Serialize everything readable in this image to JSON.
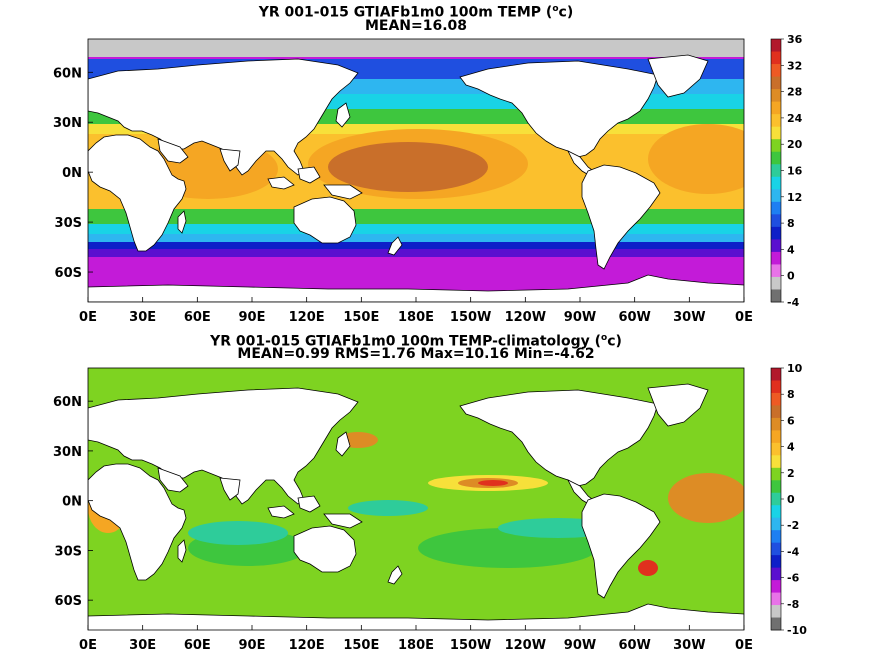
{
  "panel_top": {
    "title_line1_pre": "YR 001-015 GTIAFb1m0 100m TEMP (",
    "title_sup": "o",
    "title_line1_post": "c)",
    "title_line2": "MEAN=16.08",
    "lat_labels": [
      "60N",
      "30N",
      "0N",
      "30S",
      "60S"
    ],
    "lon_labels": [
      "0E",
      "30E",
      "60E",
      "90E",
      "120E",
      "150E",
      "180E",
      "150W",
      "120W",
      "90W",
      "60W",
      "30W",
      "0E"
    ],
    "colorbar_labels": [
      "36",
      "32",
      "28",
      "24",
      "20",
      "16",
      "12",
      "8",
      "4",
      "0",
      "-4"
    ],
    "colorbar_colors": [
      "#b2182b",
      "#e0301e",
      "#ee5a24",
      "#c96f2a",
      "#dd8c25",
      "#f5a623",
      "#fbc02d",
      "#f7e03a",
      "#7ed321",
      "#3ec63e",
      "#2ecc9a",
      "#19d3e6",
      "#2eb6f0",
      "#1e7ff2",
      "#1f4fe0",
      "#0e1fc8",
      "#5a0fcf",
      "#c31bd8",
      "#e873e8",
      "#c8c8c8",
      "#707070"
    ]
  },
  "panel_bottom": {
    "title_line1_pre": "YR 001-015 GTIAFb1m0 100m TEMP-climatology (",
    "title_sup": "o",
    "title_line1_post": "c)",
    "title_line2": "MEAN=0.99   RMS=1.76   Max=10.16   Min=-4.62",
    "lat_labels": [
      "60N",
      "30N",
      "0N",
      "30S",
      "60S"
    ],
    "lon_labels": [
      "0E",
      "30E",
      "60E",
      "90E",
      "120E",
      "150E",
      "180E",
      "150W",
      "120W",
      "90W",
      "60W",
      "30W",
      "0E"
    ],
    "colorbar_labels": [
      "10",
      "8",
      "6",
      "4",
      "2",
      "0",
      "-2",
      "-4",
      "-6",
      "-8",
      "-10"
    ],
    "colorbar_colors": [
      "#b2182b",
      "#e0301e",
      "#ee5a24",
      "#c96f2a",
      "#dd8c25",
      "#f5a623",
      "#fbc02d",
      "#f7e03a",
      "#7ed321",
      "#3ec63e",
      "#2ecc9a",
      "#19d3e6",
      "#2eb6f0",
      "#1e7ff2",
      "#1f4fe0",
      "#0e1fc8",
      "#5a0fcf",
      "#c31bd8",
      "#e873e8",
      "#c8c8c8",
      "#707070"
    ]
  }
}
